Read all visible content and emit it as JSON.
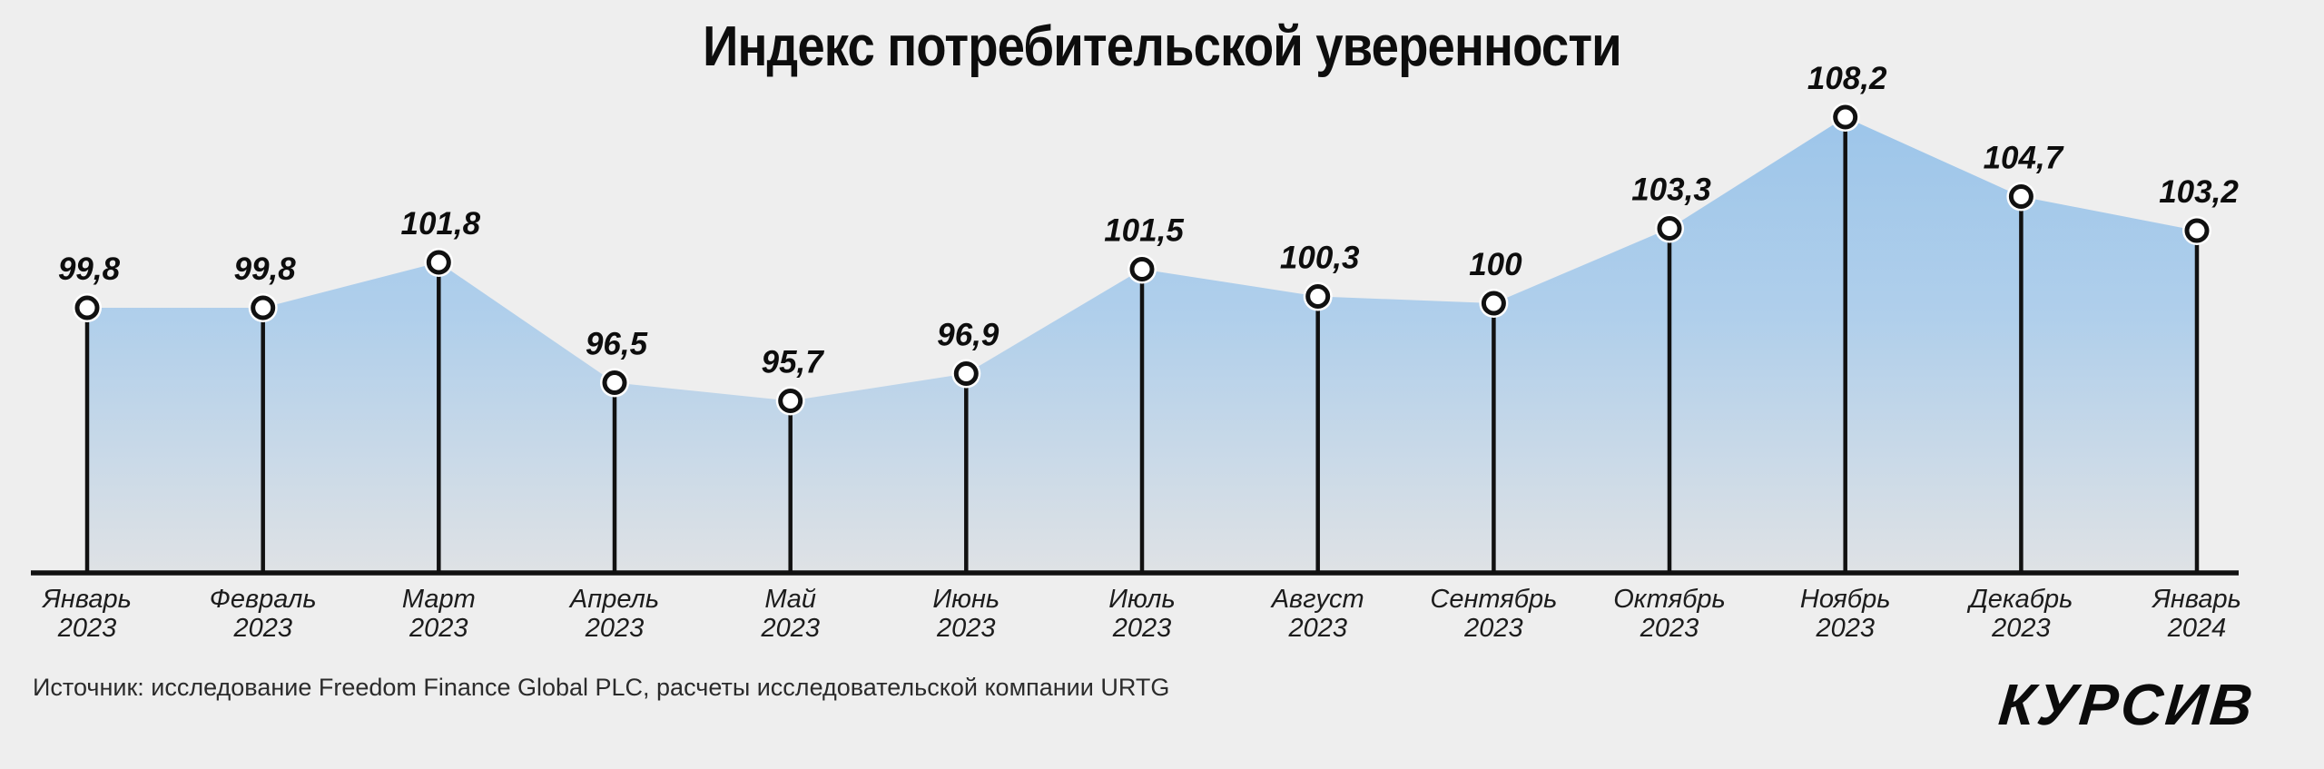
{
  "page": {
    "background": "#eeeeee"
  },
  "chart_data": {
    "type": "area",
    "title": "Индекс потребительской уверенности",
    "categories": [
      {
        "month": "Январь",
        "year": "2023"
      },
      {
        "month": "Февраль",
        "year": "2023"
      },
      {
        "month": "Март",
        "year": "2023"
      },
      {
        "month": "Апрель",
        "year": "2023"
      },
      {
        "month": "Май",
        "year": "2023"
      },
      {
        "month": "Июнь",
        "year": "2023"
      },
      {
        "month": "Июль",
        "year": "2023"
      },
      {
        "month": "Август",
        "year": "2023"
      },
      {
        "month": "Сентябрь",
        "year": "2023"
      },
      {
        "month": "Октябрь",
        "year": "2023"
      },
      {
        "month": "Ноябрь",
        "year": "2023"
      },
      {
        "month": "Декабрь",
        "year": "2023"
      },
      {
        "month": "Январь",
        "year": "2024"
      }
    ],
    "values": [
      99.8,
      99.8,
      101.8,
      96.5,
      95.7,
      96.9,
      101.5,
      100.3,
      100,
      103.3,
      108.2,
      104.7,
      103.2
    ],
    "value_labels": [
      "99,8",
      "99,8",
      "101,8",
      "96,5",
      "95,7",
      "96,9",
      "101,5",
      "100,3",
      "100",
      "103,3",
      "108,2",
      "104,7",
      "103,2"
    ],
    "xlabel": "",
    "ylabel": "",
    "y_axis_visible": false,
    "x_axis_visible": true,
    "grid": false,
    "legend": false,
    "marker": "circle-on-stem",
    "colors": {
      "area_top": "#9cc5ea",
      "area_mid": "#b0cfeb",
      "area_bottom": "#dfe2e5",
      "stroke": "#111111",
      "marker_fill": "#ffffff",
      "marker_halo": "#ffffff"
    }
  },
  "footer": {
    "source": "Источник: исследование Freedom Finance Global PLC, расчеты исследовательской компании URTG",
    "logo": "КУРСИВ"
  }
}
